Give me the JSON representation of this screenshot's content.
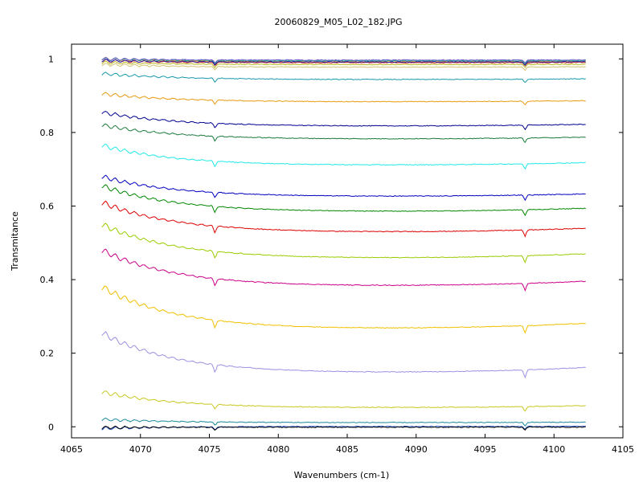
{
  "chart_data": {
    "type": "line",
    "title": "20060829_M05_L02_182.JPG",
    "xlabel": "Wavenumbers (cm-1)",
    "ylabel": "Transmitance",
    "xlim": [
      4065,
      4105
    ],
    "ylim": [
      -0.03,
      1.04
    ],
    "x_ticks": [
      4065,
      4070,
      4075,
      4080,
      4085,
      4090,
      4095,
      4100,
      4105
    ],
    "y_ticks": [
      0,
      0.2,
      0.4,
      0.6,
      0.8,
      1
    ],
    "grid": false,
    "legend": "none",
    "x_range": [
      4067.2,
      4102.3
    ],
    "absorption_lines_x": [
      4075.4,
      4097.9
    ],
    "series": [
      {
        "color": "#f5a623",
        "start": 1.0,
        "end": 0.993
      },
      {
        "color": "#22aa88",
        "start": 1.0,
        "end": 0.995
      },
      {
        "color": "#cc2222",
        "start": 0.995,
        "end": 0.99
      },
      {
        "color": "#6a5acd",
        "start": 1.0,
        "end": 0.997
      },
      {
        "color": "#2222aa",
        "start": 0.995,
        "end": 0.992
      },
      {
        "color": "#b8b820",
        "start": 0.99,
        "end": 0.985
      },
      {
        "color": "#d4c070",
        "start": 0.985,
        "end": 0.978
      },
      {
        "color": "#1a9aaa",
        "start": 0.96,
        "end": 0.945
      },
      {
        "color": "#e89a10",
        "start": 0.905,
        "end": 0.885
      },
      {
        "color": "#000090",
        "start": 0.855,
        "end": 0.82
      },
      {
        "color": "#1a7a3a",
        "start": 0.82,
        "end": 0.785
      },
      {
        "color": "#22e8e8",
        "start": 0.765,
        "end": 0.715
      },
      {
        "color": "#0000c0",
        "start": 0.68,
        "end": 0.63
      },
      {
        "color": "#008800",
        "start": 0.655,
        "end": 0.59
      },
      {
        "color": "#dd0000",
        "start": 0.61,
        "end": 0.535
      },
      {
        "color": "#99cc00",
        "start": 0.55,
        "end": 0.465
      },
      {
        "color": "#cc0088",
        "start": 0.48,
        "end": 0.39
      },
      {
        "color": "#f0c000",
        "start": 0.38,
        "end": 0.275
      },
      {
        "color": "#9a90e0",
        "start": 0.255,
        "end": 0.155
      },
      {
        "color": "#c8c820",
        "start": 0.095,
        "end": 0.055
      },
      {
        "color": "#1a8a9a",
        "start": 0.02,
        "end": 0.012
      },
      {
        "color": "#2255cc",
        "start": -0.005,
        "end": 0.001
      },
      {
        "color": "#000000",
        "start": -0.002,
        "end": -0.001
      }
    ]
  }
}
